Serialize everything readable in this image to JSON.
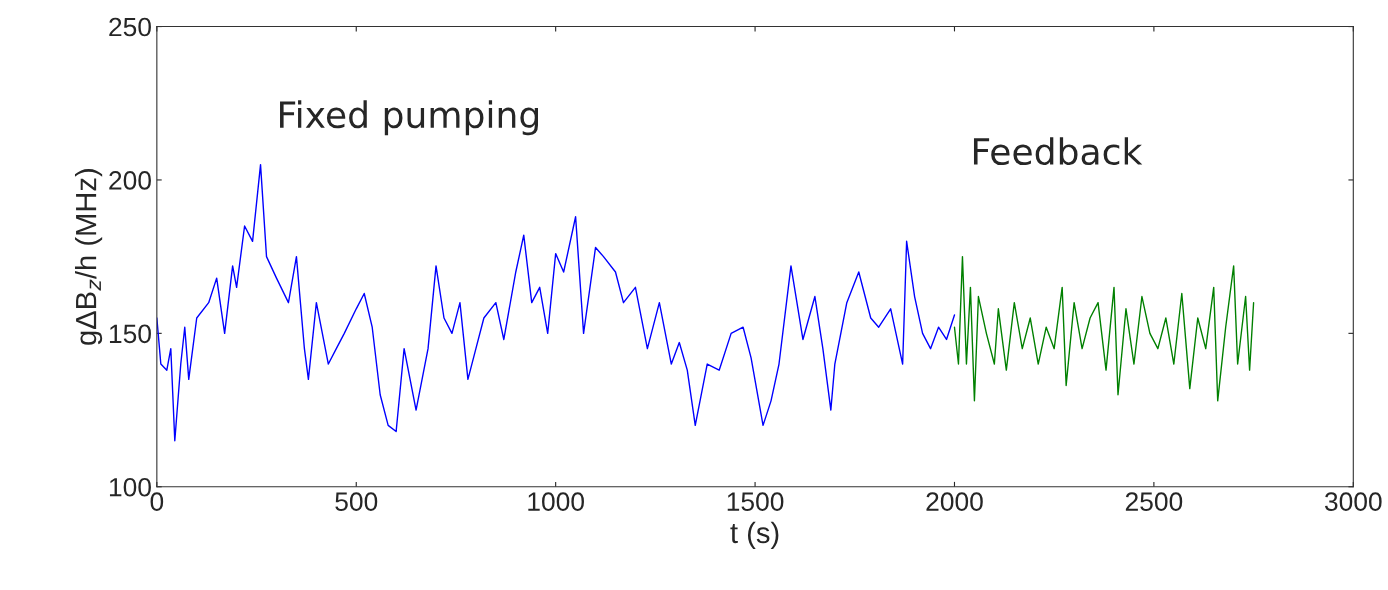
{
  "chart_data": {
    "type": "line",
    "xlabel": "t (s)",
    "ylabel": "gΔB$_{z}$/h (MHz)",
    "xlim": [
      0,
      3000
    ],
    "xticks": [
      0,
      500,
      1000,
      1500,
      2000,
      2500,
      3000
    ],
    "ylim": [
      100,
      250
    ],
    "yticks": [
      100,
      150,
      200,
      250
    ],
    "grid": false,
    "legend": false,
    "annotations": [
      "Fixed pumping",
      "Feedback"
    ],
    "series": [
      {
        "color": "#0000ff",
        "x": [
          0,
          10,
          25,
          35,
          45,
          60,
          70,
          80,
          100,
          130,
          150,
          170,
          190,
          200,
          220,
          240,
          260,
          275,
          300,
          330,
          350,
          370,
          380,
          400,
          430,
          450,
          470,
          500,
          520,
          540,
          560,
          580,
          600,
          620,
          650,
          680,
          700,
          720,
          740,
          760,
          780,
          800,
          820,
          850,
          870,
          900,
          920,
          940,
          960,
          980,
          1000,
          1020,
          1050,
          1070,
          1100,
          1120,
          1150,
          1170,
          1200,
          1230,
          1260,
          1290,
          1310,
          1330,
          1350,
          1380,
          1410,
          1440,
          1470,
          1490,
          1520,
          1540,
          1560,
          1590,
          1620,
          1650,
          1670,
          1690,
          1700,
          1730,
          1760,
          1790,
          1810,
          1840,
          1870,
          1880,
          1900,
          1920,
          1940,
          1960,
          1980,
          2000
        ],
        "values": [
          155,
          140,
          138,
          145,
          115,
          140,
          152,
          135,
          155,
          160,
          168,
          150,
          172,
          165,
          185,
          180,
          205,
          175,
          168,
          160,
          175,
          145,
          135,
          160,
          140,
          145,
          150,
          158,
          163,
          152,
          130,
          120,
          118,
          145,
          125,
          145,
          172,
          155,
          150,
          160,
          135,
          145,
          155,
          160,
          148,
          170,
          182,
          160,
          165,
          150,
          176,
          170,
          188,
          150,
          178,
          175,
          170,
          160,
          165,
          145,
          160,
          140,
          147,
          138,
          120,
          140,
          138,
          150,
          152,
          142,
          120,
          128,
          140,
          172,
          148,
          162,
          145,
          125,
          140,
          160,
          170,
          155,
          152,
          158,
          140,
          180,
          162,
          150,
          145,
          152,
          148,
          156
        ]
      },
      {
        "color": "#008000",
        "x": [
          2000,
          2010,
          2020,
          2030,
          2040,
          2050,
          2060,
          2080,
          2100,
          2110,
          2130,
          2150,
          2170,
          2190,
          2210,
          2230,
          2250,
          2270,
          2280,
          2300,
          2320,
          2340,
          2360,
          2380,
          2400,
          2410,
          2430,
          2450,
          2470,
          2490,
          2510,
          2530,
          2550,
          2570,
          2590,
          2610,
          2630,
          2650,
          2660,
          2680,
          2700,
          2710,
          2730,
          2740,
          2750
        ],
        "values": [
          152,
          140,
          175,
          140,
          165,
          128,
          162,
          150,
          140,
          158,
          138,
          160,
          145,
          155,
          140,
          152,
          145,
          165,
          133,
          160,
          145,
          155,
          160,
          138,
          165,
          130,
          158,
          140,
          162,
          150,
          145,
          155,
          140,
          163,
          132,
          155,
          145,
          165,
          128,
          152,
          172,
          140,
          162,
          138,
          160
        ]
      }
    ]
  }
}
